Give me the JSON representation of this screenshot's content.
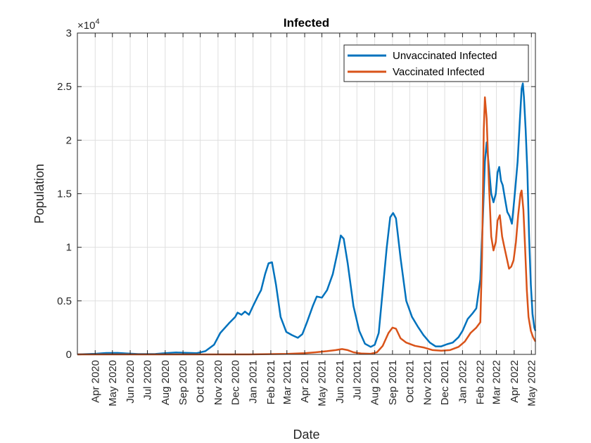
{
  "chart_data": {
    "type": "line",
    "title": "Infected",
    "xlabel": "Date",
    "ylabel": "Population",
    "y_exponent_label": "×10",
    "y_exponent_power": "4",
    "ylim": [
      0,
      30000
    ],
    "xlim": [
      "2020-03-01",
      "2022-05-08"
    ],
    "grid": true,
    "legend_position": "top-right",
    "y_ticks": [
      {
        "value": 0,
        "label": "0"
      },
      {
        "value": 5000,
        "label": "0.5"
      },
      {
        "value": 10000,
        "label": "1"
      },
      {
        "value": 15000,
        "label": "1.5"
      },
      {
        "value": 20000,
        "label": "2"
      },
      {
        "value": 25000,
        "label": "2.5"
      },
      {
        "value": 30000,
        "label": "3"
      }
    ],
    "x_ticks": [
      {
        "date": "2020-04-01",
        "label": "Apr 2020"
      },
      {
        "date": "2020-05-01",
        "label": "May 2020"
      },
      {
        "date": "2020-06-01",
        "label": "Jun 2020"
      },
      {
        "date": "2020-07-01",
        "label": "Jul 2020"
      },
      {
        "date": "2020-08-01",
        "label": "Aug 2020"
      },
      {
        "date": "2020-09-01",
        "label": "Sep 2020"
      },
      {
        "date": "2020-10-01",
        "label": "Oct 2020"
      },
      {
        "date": "2020-11-01",
        "label": "Nov 2020"
      },
      {
        "date": "2020-12-01",
        "label": "Dec 2020"
      },
      {
        "date": "2021-01-01",
        "label": "Jan 2021"
      },
      {
        "date": "2021-02-01",
        "label": "Feb 2021"
      },
      {
        "date": "2021-03-01",
        "label": "Mar 2021"
      },
      {
        "date": "2021-04-01",
        "label": "Apr 2021"
      },
      {
        "date": "2021-05-01",
        "label": "May 2021"
      },
      {
        "date": "2021-06-01",
        "label": "Jun 2021"
      },
      {
        "date": "2021-07-01",
        "label": "Jul 2021"
      },
      {
        "date": "2021-08-01",
        "label": "Aug 2021"
      },
      {
        "date": "2021-09-01",
        "label": "Sep 2021"
      },
      {
        "date": "2021-10-01",
        "label": "Oct 2021"
      },
      {
        "date": "2021-11-01",
        "label": "Nov 2021"
      },
      {
        "date": "2021-12-01",
        "label": "Dec 2021"
      },
      {
        "date": "2022-01-01",
        "label": "Jan 2022"
      },
      {
        "date": "2022-02-01",
        "label": "Feb 2022"
      },
      {
        "date": "2022-03-01",
        "label": "Mar 2022"
      },
      {
        "date": "2022-04-01",
        "label": "Apr 2022"
      },
      {
        "date": "2022-05-01",
        "label": "May 2022"
      }
    ],
    "series": [
      {
        "name": "Unvaccinated Infected",
        "color": "#0072BD",
        "points": [
          [
            "2020-03-01",
            0
          ],
          [
            "2020-04-01",
            60
          ],
          [
            "2020-04-20",
            130
          ],
          [
            "2020-05-10",
            140
          ],
          [
            "2020-05-25",
            90
          ],
          [
            "2020-06-15",
            30
          ],
          [
            "2020-07-15",
            40
          ],
          [
            "2020-08-01",
            120
          ],
          [
            "2020-08-20",
            180
          ],
          [
            "2020-09-05",
            150
          ],
          [
            "2020-09-25",
            120
          ],
          [
            "2020-10-10",
            300
          ],
          [
            "2020-10-25",
            900
          ],
          [
            "2020-11-05",
            2000
          ],
          [
            "2020-11-20",
            2900
          ],
          [
            "2020-12-01",
            3500
          ],
          [
            "2020-12-05",
            3900
          ],
          [
            "2020-12-12",
            3700
          ],
          [
            "2020-12-18",
            4000
          ],
          [
            "2020-12-25",
            3700
          ],
          [
            "2021-01-01",
            4500
          ],
          [
            "2021-01-10",
            5500
          ],
          [
            "2021-01-15",
            6000
          ],
          [
            "2021-01-22",
            7500
          ],
          [
            "2021-01-28",
            8500
          ],
          [
            "2021-02-03",
            8600
          ],
          [
            "2021-02-10",
            6500
          ],
          [
            "2021-02-18",
            3500
          ],
          [
            "2021-02-28",
            2100
          ],
          [
            "2021-03-10",
            1800
          ],
          [
            "2021-03-20",
            1550
          ],
          [
            "2021-03-28",
            1900
          ],
          [
            "2021-04-05",
            3000
          ],
          [
            "2021-04-15",
            4500
          ],
          [
            "2021-04-22",
            5400
          ],
          [
            "2021-05-01",
            5300
          ],
          [
            "2021-05-10",
            6000
          ],
          [
            "2021-05-20",
            7500
          ],
          [
            "2021-05-28",
            9500
          ],
          [
            "2021-06-03",
            11100
          ],
          [
            "2021-06-08",
            10800
          ],
          [
            "2021-06-15",
            8500
          ],
          [
            "2021-06-25",
            4500
          ],
          [
            "2021-07-05",
            2200
          ],
          [
            "2021-07-15",
            1000
          ],
          [
            "2021-07-25",
            700
          ],
          [
            "2021-08-01",
            900
          ],
          [
            "2021-08-08",
            2000
          ],
          [
            "2021-08-15",
            6000
          ],
          [
            "2021-08-22",
            10000
          ],
          [
            "2021-08-28",
            12800
          ],
          [
            "2021-09-02",
            13200
          ],
          [
            "2021-09-07",
            12700
          ],
          [
            "2021-09-15",
            9000
          ],
          [
            "2021-09-25",
            5000
          ],
          [
            "2021-10-05",
            3500
          ],
          [
            "2021-10-15",
            2600
          ],
          [
            "2021-10-25",
            1800
          ],
          [
            "2021-11-05",
            1100
          ],
          [
            "2021-11-15",
            750
          ],
          [
            "2021-11-25",
            750
          ],
          [
            "2021-12-05",
            950
          ],
          [
            "2021-12-15",
            1100
          ],
          [
            "2021-12-25",
            1600
          ],
          [
            "2022-01-01",
            2200
          ],
          [
            "2022-01-10",
            3300
          ],
          [
            "2022-01-18",
            3800
          ],
          [
            "2022-01-25",
            4300
          ],
          [
            "2022-02-01",
            7000
          ],
          [
            "2022-02-05",
            12000
          ],
          [
            "2022-02-09",
            18000
          ],
          [
            "2022-02-12",
            19800
          ],
          [
            "2022-02-16",
            17500
          ],
          [
            "2022-02-20",
            15000
          ],
          [
            "2022-02-24",
            14200
          ],
          [
            "2022-02-28",
            15000
          ],
          [
            "2022-03-03",
            17000
          ],
          [
            "2022-03-06",
            17500
          ],
          [
            "2022-03-09",
            16200
          ],
          [
            "2022-03-12",
            15800
          ],
          [
            "2022-03-16",
            14500
          ],
          [
            "2022-03-20",
            13300
          ],
          [
            "2022-03-24",
            12900
          ],
          [
            "2022-03-28",
            12200
          ],
          [
            "2022-03-31",
            13800
          ],
          [
            "2022-04-03",
            15500
          ],
          [
            "2022-04-07",
            18000
          ],
          [
            "2022-04-11",
            22000
          ],
          [
            "2022-04-14",
            24800
          ],
          [
            "2022-04-16",
            25300
          ],
          [
            "2022-04-18",
            24000
          ],
          [
            "2022-04-21",
            21000
          ],
          [
            "2022-04-24",
            17000
          ],
          [
            "2022-04-27",
            11000
          ],
          [
            "2022-04-30",
            6500
          ],
          [
            "2022-05-03",
            3800
          ],
          [
            "2022-05-06",
            2500
          ],
          [
            "2022-05-08",
            2200
          ]
        ]
      },
      {
        "name": "Vaccinated Infected",
        "color": "#D95319",
        "points": [
          [
            "2020-03-01",
            0
          ],
          [
            "2020-12-25",
            0
          ],
          [
            "2021-01-15",
            10
          ],
          [
            "2021-03-01",
            50
          ],
          [
            "2021-04-01",
            120
          ],
          [
            "2021-04-20",
            200
          ],
          [
            "2021-05-10",
            300
          ],
          [
            "2021-05-25",
            400
          ],
          [
            "2021-06-05",
            500
          ],
          [
            "2021-06-15",
            400
          ],
          [
            "2021-06-25",
            200
          ],
          [
            "2021-07-10",
            80
          ],
          [
            "2021-07-25",
            60
          ],
          [
            "2021-08-05",
            200
          ],
          [
            "2021-08-15",
            800
          ],
          [
            "2021-08-25",
            2000
          ],
          [
            "2021-09-01",
            2500
          ],
          [
            "2021-09-07",
            2400
          ],
          [
            "2021-09-15",
            1500
          ],
          [
            "2021-09-25",
            1100
          ],
          [
            "2021-10-10",
            800
          ],
          [
            "2021-10-25",
            650
          ],
          [
            "2021-11-10",
            400
          ],
          [
            "2021-11-25",
            350
          ],
          [
            "2021-12-10",
            400
          ],
          [
            "2021-12-25",
            700
          ],
          [
            "2022-01-05",
            1200
          ],
          [
            "2022-01-15",
            2000
          ],
          [
            "2022-01-25",
            2500
          ],
          [
            "2022-02-01",
            3000
          ],
          [
            "2022-02-04",
            9000
          ],
          [
            "2022-02-07",
            21000
          ],
          [
            "2022-02-09",
            24000
          ],
          [
            "2022-02-12",
            22000
          ],
          [
            "2022-02-16",
            16000
          ],
          [
            "2022-02-20",
            11000
          ],
          [
            "2022-02-24",
            9700
          ],
          [
            "2022-02-28",
            10500
          ],
          [
            "2022-03-03",
            12500
          ],
          [
            "2022-03-07",
            13000
          ],
          [
            "2022-03-11",
            11000
          ],
          [
            "2022-03-15",
            10000
          ],
          [
            "2022-03-19",
            9000
          ],
          [
            "2022-03-23",
            8000
          ],
          [
            "2022-03-27",
            8200
          ],
          [
            "2022-03-31",
            8800
          ],
          [
            "2022-04-04",
            10500
          ],
          [
            "2022-04-08",
            13000
          ],
          [
            "2022-04-12",
            15000
          ],
          [
            "2022-04-14",
            15300
          ],
          [
            "2022-04-17",
            13500
          ],
          [
            "2022-04-20",
            10000
          ],
          [
            "2022-04-23",
            6000
          ],
          [
            "2022-04-26",
            3500
          ],
          [
            "2022-04-30",
            2200
          ],
          [
            "2022-05-04",
            1600
          ],
          [
            "2022-05-08",
            1200
          ]
        ]
      }
    ]
  }
}
